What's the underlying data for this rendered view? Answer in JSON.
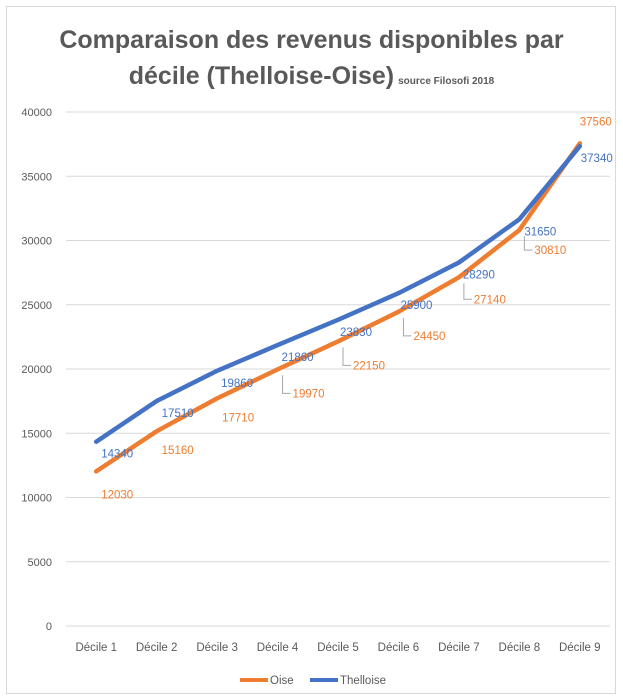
{
  "chart_data": {
    "type": "line",
    "title_line1": "Comparaison des revenus disponibles par",
    "title_line2": "décile (Thelloise-Oise)",
    "title_source": "source  Filosofi 2018",
    "categories": [
      "Décile 1",
      "Décile 2",
      "Décile 3",
      "Décile 4",
      "Décile 5",
      "Décile 6",
      "Décile 7",
      "Décile 8",
      "Décile 9"
    ],
    "ylim": [
      0,
      40000
    ],
    "yticks": [
      0,
      5000,
      10000,
      15000,
      20000,
      25000,
      30000,
      35000,
      40000
    ],
    "grid": true,
    "legend_position": "bottom",
    "series": [
      {
        "name": "Oise",
        "color": "#ED7D31",
        "values": [
          12030,
          15160,
          17710,
          19970,
          22150,
          24450,
          27140,
          30810,
          37560
        ]
      },
      {
        "name": "Thelloise",
        "color": "#4472C4",
        "values": [
          14340,
          17510,
          19860,
          21860,
          23830,
          25900,
          28290,
          31650,
          37340
        ]
      }
    ]
  }
}
